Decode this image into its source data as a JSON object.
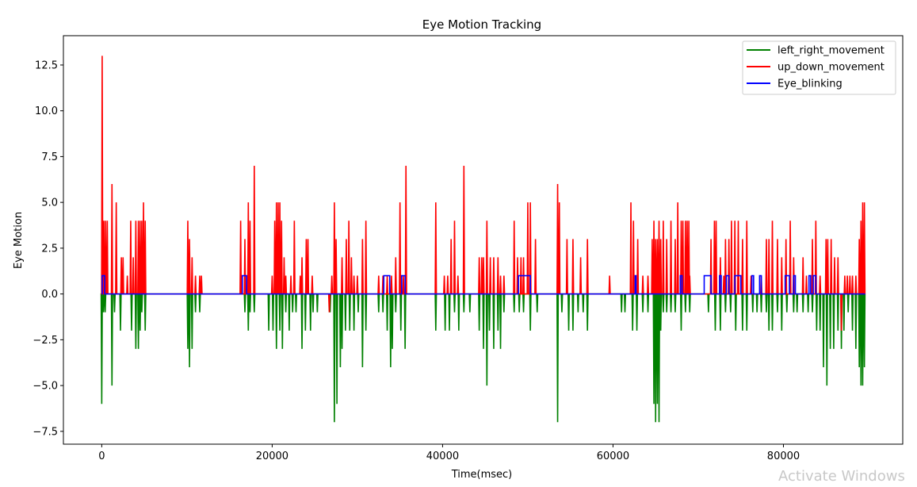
{
  "window": {
    "watermark": "Activate Windows"
  },
  "chart_data": {
    "type": "line",
    "title": "Eye Motion Tracking",
    "xlabel": "Time(msec)",
    "ylabel": "Eye Motion",
    "xlim": [
      -4500,
      94000
    ],
    "ylim": [
      -8.2,
      14.1
    ],
    "xticks": [
      0,
      20000,
      40000,
      60000,
      80000
    ],
    "xtick_labels": [
      "0",
      "20000",
      "40000",
      "60000",
      "80000"
    ],
    "yticks": [
      -7.5,
      -5.0,
      -2.5,
      0.0,
      2.5,
      5.0,
      7.5,
      10.0,
      12.5
    ],
    "ytick_labels": [
      "−7.5",
      "−5.0",
      "−2.5",
      "0.0",
      "2.5",
      "5.0",
      "7.5",
      "10.0",
      "12.5"
    ],
    "grid": false,
    "legend_position": "top-right",
    "series": [
      {
        "name": "left_right_movement",
        "color": "#008000",
        "spikes": [
          [
            0,
            -6
          ],
          [
            200,
            -1
          ],
          [
            400,
            -1
          ],
          [
            1200,
            -5
          ],
          [
            1500,
            -1
          ],
          [
            2200,
            -2
          ],
          [
            3500,
            -2
          ],
          [
            4000,
            -3
          ],
          [
            4300,
            -3
          ],
          [
            4500,
            -2
          ],
          [
            4700,
            -1
          ],
          [
            5100,
            -2
          ],
          [
            10100,
            -3
          ],
          [
            10300,
            -4
          ],
          [
            10600,
            -3
          ],
          [
            11000,
            -1
          ],
          [
            11500,
            -1
          ],
          [
            16800,
            -1
          ],
          [
            17200,
            -2
          ],
          [
            17400,
            -1
          ],
          [
            17900,
            -1
          ],
          [
            19600,
            -2
          ],
          [
            20100,
            -2
          ],
          [
            20500,
            -3
          ],
          [
            20900,
            -2
          ],
          [
            21200,
            -3
          ],
          [
            21600,
            -1
          ],
          [
            22000,
            -2
          ],
          [
            22400,
            -1
          ],
          [
            22800,
            -1
          ],
          [
            23500,
            -3
          ],
          [
            23900,
            -2
          ],
          [
            24500,
            -2
          ],
          [
            24800,
            -1
          ],
          [
            25300,
            -1
          ],
          [
            26800,
            -1
          ],
          [
            27300,
            -7
          ],
          [
            27600,
            -6
          ],
          [
            28000,
            -4
          ],
          [
            28200,
            -3
          ],
          [
            28600,
            -2
          ],
          [
            29100,
            -2
          ],
          [
            29600,
            -2
          ],
          [
            30100,
            -1
          ],
          [
            30600,
            -4
          ],
          [
            31000,
            -2
          ],
          [
            32500,
            -1
          ],
          [
            33000,
            -1
          ],
          [
            33500,
            -2
          ],
          [
            33900,
            -4
          ],
          [
            34100,
            -3
          ],
          [
            34500,
            -1
          ],
          [
            35100,
            -2
          ],
          [
            35600,
            -3
          ],
          [
            39200,
            -2
          ],
          [
            40300,
            -2
          ],
          [
            40800,
            -2
          ],
          [
            41400,
            -1
          ],
          [
            41900,
            -2
          ],
          [
            42500,
            -1
          ],
          [
            43200,
            -1
          ],
          [
            44300,
            -2
          ],
          [
            44800,
            -3
          ],
          [
            45200,
            -5
          ],
          [
            45500,
            -2
          ],
          [
            46000,
            -3
          ],
          [
            46500,
            -2
          ],
          [
            46800,
            -3
          ],
          [
            47200,
            -1
          ],
          [
            48400,
            -1
          ],
          [
            49000,
            -1
          ],
          [
            49500,
            -1
          ],
          [
            50300,
            -2
          ],
          [
            51100,
            -1
          ],
          [
            53500,
            -7
          ],
          [
            54000,
            -1
          ],
          [
            54800,
            -2
          ],
          [
            55300,
            -2
          ],
          [
            55900,
            -1
          ],
          [
            56500,
            -1
          ],
          [
            57000,
            -2
          ],
          [
            61000,
            -1
          ],
          [
            61400,
            -1
          ],
          [
            62300,
            -2
          ],
          [
            62800,
            -2
          ],
          [
            63500,
            -1
          ],
          [
            64100,
            -1
          ],
          [
            64800,
            -6
          ],
          [
            65000,
            -7
          ],
          [
            65200,
            -6
          ],
          [
            65400,
            -7
          ],
          [
            65600,
            -2
          ],
          [
            65900,
            -1
          ],
          [
            66300,
            -1
          ],
          [
            66800,
            -1
          ],
          [
            67300,
            -1
          ],
          [
            68000,
            -2
          ],
          [
            68500,
            -1
          ],
          [
            69000,
            -1
          ],
          [
            71200,
            -1
          ],
          [
            72000,
            -2
          ],
          [
            72600,
            -2
          ],
          [
            73200,
            -1
          ],
          [
            73800,
            -1
          ],
          [
            74400,
            -2
          ],
          [
            75200,
            -2
          ],
          [
            75700,
            -2
          ],
          [
            76400,
            -1
          ],
          [
            76900,
            -1
          ],
          [
            77400,
            -1
          ],
          [
            78000,
            -1
          ],
          [
            78300,
            -2
          ],
          [
            78700,
            -2
          ],
          [
            79300,
            -1
          ],
          [
            79800,
            -2
          ],
          [
            80400,
            -1
          ],
          [
            81200,
            -1
          ],
          [
            81600,
            -1
          ],
          [
            82300,
            -1
          ],
          [
            82900,
            -1
          ],
          [
            83400,
            -1
          ],
          [
            83900,
            -2
          ],
          [
            84300,
            -2
          ],
          [
            84700,
            -4
          ],
          [
            85100,
            -5
          ],
          [
            85500,
            -3
          ],
          [
            85900,
            -3
          ],
          [
            86400,
            -2
          ],
          [
            86800,
            -3
          ],
          [
            87100,
            -2
          ],
          [
            87600,
            -1
          ],
          [
            88100,
            -2
          ],
          [
            88500,
            -3
          ],
          [
            88900,
            -4
          ],
          [
            89100,
            -5
          ],
          [
            89300,
            -5
          ],
          [
            89500,
            -4
          ]
        ]
      },
      {
        "name": "up_down_movement",
        "color": "#ff0000",
        "spikes": [
          [
            50,
            13
          ],
          [
            250,
            4
          ],
          [
            450,
            4
          ],
          [
            650,
            4
          ],
          [
            1200,
            6
          ],
          [
            1700,
            5
          ],
          [
            2300,
            2
          ],
          [
            2500,
            2
          ],
          [
            3000,
            1
          ],
          [
            3400,
            4
          ],
          [
            3700,
            2
          ],
          [
            4000,
            4
          ],
          [
            4300,
            4
          ],
          [
            4500,
            4
          ],
          [
            4700,
            4
          ],
          [
            4900,
            5
          ],
          [
            5100,
            4
          ],
          [
            10100,
            4
          ],
          [
            10300,
            3
          ],
          [
            10600,
            2
          ],
          [
            11000,
            1
          ],
          [
            11500,
            1
          ],
          [
            11700,
            1
          ],
          [
            16300,
            4
          ],
          [
            16800,
            3
          ],
          [
            17200,
            5
          ],
          [
            17400,
            4
          ],
          [
            17900,
            7
          ],
          [
            20000,
            1
          ],
          [
            20300,
            4
          ],
          [
            20500,
            5
          ],
          [
            20700,
            5
          ],
          [
            20900,
            5
          ],
          [
            21100,
            4
          ],
          [
            21400,
            2
          ],
          [
            21600,
            1
          ],
          [
            22200,
            1
          ],
          [
            22600,
            4
          ],
          [
            23300,
            1
          ],
          [
            23500,
            2
          ],
          [
            24000,
            3
          ],
          [
            24200,
            3
          ],
          [
            24700,
            1
          ],
          [
            26700,
            -1
          ],
          [
            27000,
            1
          ],
          [
            27300,
            5
          ],
          [
            27500,
            3
          ],
          [
            28200,
            2
          ],
          [
            28700,
            3
          ],
          [
            29000,
            4
          ],
          [
            29300,
            2
          ],
          [
            29600,
            1
          ],
          [
            30000,
            1
          ],
          [
            30600,
            3
          ],
          [
            31000,
            4
          ],
          [
            32500,
            1
          ],
          [
            33000,
            1
          ],
          [
            33500,
            1
          ],
          [
            34000,
            1
          ],
          [
            34500,
            2
          ],
          [
            35000,
            5
          ],
          [
            35400,
            1
          ],
          [
            35700,
            7
          ],
          [
            39200,
            5
          ],
          [
            40200,
            1
          ],
          [
            40600,
            1
          ],
          [
            41000,
            3
          ],
          [
            41400,
            4
          ],
          [
            41800,
            1
          ],
          [
            42500,
            7
          ],
          [
            44300,
            2
          ],
          [
            44600,
            2
          ],
          [
            44800,
            2
          ],
          [
            45200,
            4
          ],
          [
            45600,
            2
          ],
          [
            46000,
            2
          ],
          [
            46500,
            2
          ],
          [
            46800,
            1
          ],
          [
            47200,
            1
          ],
          [
            48400,
            4
          ],
          [
            48800,
            2
          ],
          [
            49200,
            2
          ],
          [
            49500,
            2
          ],
          [
            50000,
            5
          ],
          [
            50300,
            5
          ],
          [
            50900,
            3
          ],
          [
            53500,
            6
          ],
          [
            53700,
            5
          ],
          [
            54600,
            3
          ],
          [
            55300,
            3
          ],
          [
            56200,
            2
          ],
          [
            57000,
            3
          ],
          [
            59600,
            1
          ],
          [
            62100,
            5
          ],
          [
            62400,
            4
          ],
          [
            62900,
            3
          ],
          [
            63500,
            1
          ],
          [
            64100,
            1
          ],
          [
            64600,
            3
          ],
          [
            64800,
            4
          ],
          [
            65000,
            3
          ],
          [
            65200,
            3
          ],
          [
            65400,
            4
          ],
          [
            65600,
            3
          ],
          [
            65900,
            4
          ],
          [
            66300,
            3
          ],
          [
            66800,
            4
          ],
          [
            67300,
            3
          ],
          [
            67600,
            5
          ],
          [
            68000,
            4
          ],
          [
            68200,
            4
          ],
          [
            68500,
            4
          ],
          [
            68700,
            4
          ],
          [
            68900,
            4
          ],
          [
            69000,
            1
          ],
          [
            70000,
            0
          ],
          [
            71000,
            0
          ],
          [
            71500,
            3
          ],
          [
            71900,
            4
          ],
          [
            72100,
            4
          ],
          [
            72600,
            2
          ],
          [
            73000,
            1
          ],
          [
            73200,
            3
          ],
          [
            73600,
            3
          ],
          [
            73900,
            4
          ],
          [
            74300,
            4
          ],
          [
            74700,
            4
          ],
          [
            75200,
            3
          ],
          [
            75700,
            4
          ],
          [
            76200,
            1
          ],
          [
            77400,
            1
          ],
          [
            78000,
            3
          ],
          [
            78300,
            3
          ],
          [
            78700,
            4
          ],
          [
            79300,
            3
          ],
          [
            79800,
            2
          ],
          [
            80300,
            3
          ],
          [
            80800,
            4
          ],
          [
            81200,
            2
          ],
          [
            82300,
            2
          ],
          [
            82700,
            1
          ],
          [
            83400,
            3
          ],
          [
            83800,
            4
          ],
          [
            84300,
            1
          ],
          [
            85000,
            3
          ],
          [
            85200,
            3
          ],
          [
            85600,
            3
          ],
          [
            86000,
            2
          ],
          [
            86400,
            2
          ],
          [
            86800,
            -2
          ],
          [
            87200,
            1
          ],
          [
            87500,
            1
          ],
          [
            87800,
            1
          ],
          [
            88100,
            1
          ],
          [
            88500,
            1
          ],
          [
            88900,
            3
          ],
          [
            89100,
            4
          ],
          [
            89300,
            5
          ],
          [
            89500,
            5
          ]
        ]
      },
      {
        "name": "Eye_blinking",
        "color": "#0000ff",
        "pulses": [
          [
            50,
            350
          ],
          [
            16500,
            17000
          ],
          [
            33100,
            33800
          ],
          [
            35200,
            35600
          ],
          [
            48900,
            50300
          ],
          [
            62600,
            62700
          ],
          [
            67900,
            68100
          ],
          [
            70700,
            71500
          ],
          [
            72500,
            72700
          ],
          [
            73300,
            73600
          ],
          [
            74300,
            75000
          ],
          [
            76300,
            76500
          ],
          [
            77200,
            77400
          ],
          [
            80200,
            80700
          ],
          [
            81200,
            81400
          ],
          [
            83000,
            83200
          ],
          [
            83500,
            83800
          ]
        ]
      }
    ]
  }
}
